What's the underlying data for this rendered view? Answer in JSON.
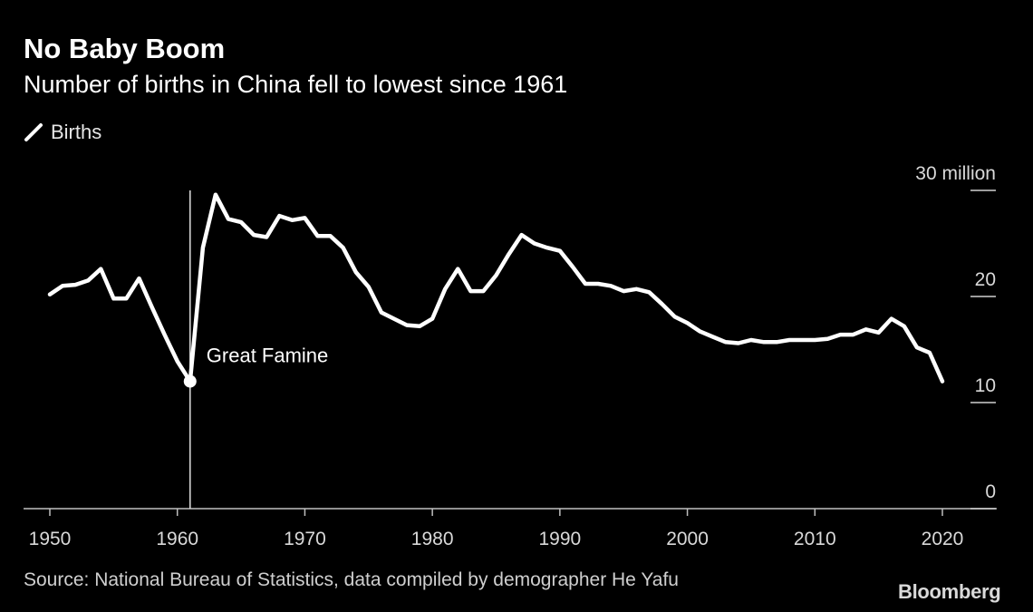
{
  "chart_data": {
    "type": "line",
    "title": "No Baby Boom",
    "subtitle": "Number of births in China fell to lowest since 1961",
    "legend": {
      "placement": "top-left",
      "entries": [
        "Births"
      ]
    },
    "series": [
      {
        "name": "Births",
        "color": "#ffffff",
        "x": [
          1950,
          1951,
          1952,
          1953,
          1954,
          1955,
          1956,
          1957,
          1958,
          1959,
          1960,
          1961,
          1962,
          1963,
          1964,
          1965,
          1966,
          1967,
          1968,
          1969,
          1970,
          1971,
          1972,
          1973,
          1974,
          1975,
          1976,
          1977,
          1978,
          1979,
          1980,
          1981,
          1982,
          1983,
          1984,
          1985,
          1986,
          1987,
          1988,
          1989,
          1990,
          1991,
          1992,
          1993,
          1994,
          1995,
          1996,
          1997,
          1998,
          1999,
          2000,
          2001,
          2002,
          2003,
          2004,
          2005,
          2006,
          2007,
          2008,
          2009,
          2010,
          2011,
          2012,
          2013,
          2014,
          2015,
          2016,
          2017,
          2018,
          2019,
          2020
        ],
        "values": [
          20.2,
          21.0,
          21.1,
          21.5,
          22.6,
          19.8,
          19.8,
          21.7,
          19.0,
          16.4,
          13.9,
          12.0,
          24.6,
          29.6,
          27.3,
          27.0,
          25.8,
          25.6,
          27.6,
          27.2,
          27.4,
          25.7,
          25.7,
          24.6,
          22.3,
          20.9,
          18.5,
          17.9,
          17.3,
          17.2,
          17.9,
          20.7,
          22.6,
          20.5,
          20.5,
          22.0,
          24.0,
          25.8,
          25.0,
          24.6,
          24.3,
          22.8,
          21.2,
          21.2,
          21.0,
          20.5,
          20.7,
          20.4,
          19.3,
          18.1,
          17.5,
          16.7,
          16.2,
          15.7,
          15.6,
          15.9,
          15.7,
          15.7,
          15.9,
          15.9,
          15.9,
          16.0,
          16.4,
          16.4,
          16.9,
          16.6,
          17.9,
          17.2,
          15.2,
          14.7,
          12.0
        ]
      }
    ],
    "xlim": [
      1949,
      2023
    ],
    "ylim": [
      0,
      30
    ],
    "x_ticks": [
      "1950",
      "1960",
      "1970",
      "1980",
      "1990",
      "2000",
      "2010",
      "2020"
    ],
    "y_ticks": [
      {
        "value": 30,
        "label": "30 million"
      },
      {
        "value": 20,
        "label": "20"
      },
      {
        "value": 10,
        "label": "10"
      },
      {
        "value": 0,
        "label": "0"
      }
    ],
    "y_axis_position": "right",
    "grid": false,
    "annotations": [
      {
        "x": 1961,
        "y": 12.0,
        "text": "Great Famine",
        "marker": "vertical-line-and-dot"
      }
    ]
  },
  "footer": {
    "source": "Source: National Bureau of Statistics, data compiled by demographer He Yafu",
    "brand": "Bloomberg"
  }
}
